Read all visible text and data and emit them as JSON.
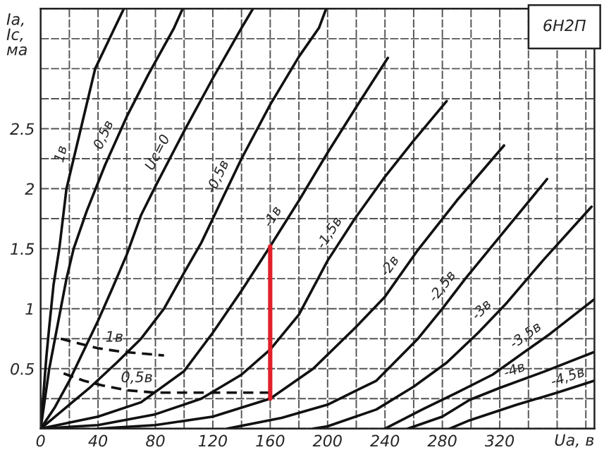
{
  "chart_data": {
    "type": "line",
    "title": "6Н2П",
    "xlabel": "Uа, в",
    "ylabel": "Iа,\nIс,\nма",
    "xlim": [
      0,
      386
    ],
    "ylim": [
      0,
      3.5
    ],
    "xticks": [
      0,
      {
        "value": 20,
        "label": null
      },
      40,
      {
        "value": 60,
        "label": null
      },
      80,
      {
        "value": 100,
        "label": null
      },
      120,
      {
        "value": 140,
        "label": null
      },
      160,
      {
        "value": 180,
        "label": null
      },
      200,
      {
        "value": 220,
        "label": null
      },
      240,
      {
        "value": 260,
        "label": null
      },
      280,
      {
        "value": 300,
        "label": null
      },
      320,
      {
        "value": 340,
        "label": null
      },
      {
        "value": 360,
        "label": null
      },
      {
        "value": 380,
        "label": null
      }
    ],
    "yticks": [
      {
        "value": 0,
        "label": null
      },
      {
        "value": 0.25,
        "label": null
      },
      0.5,
      {
        "value": 0.75,
        "label": null
      },
      1,
      {
        "value": 1.25,
        "label": null
      },
      1.5,
      {
        "value": 1.75,
        "label": null
      },
      2,
      {
        "value": 2.25,
        "label": null
      },
      2.5,
      {
        "value": 2.75,
        "label": null
      },
      {
        "value": 3,
        "label": null
      },
      {
        "value": 3.25,
        "label": null
      },
      {
        "value": 3.5,
        "label": null
      }
    ],
    "grid": true,
    "line_style": "solid",
    "marker": "none",
    "series": [
      {
        "name": "1в",
        "color": "#111111",
        "x": [
          0,
          2,
          4,
          6,
          9,
          13,
          16,
          18,
          28,
          38,
          50,
          58
        ],
        "values": [
          0,
          0.3,
          0.6,
          0.85,
          1.2,
          1.5,
          1.8,
          2,
          2.5,
          3,
          3.3,
          3.5
        ]
      },
      {
        "name": "0,5в",
        "color": "#111111",
        "x": [
          0,
          3,
          6,
          10,
          14,
          18,
          23,
          32,
          45,
          60,
          75,
          93,
          99
        ],
        "values": [
          0,
          0.25,
          0.5,
          0.75,
          1,
          1.25,
          1.5,
          1.81,
          2.2,
          2.6,
          2.95,
          3.34,
          3.5
        ]
      },
      {
        "name": "Uс=0",
        "color": "#111111",
        "x": [
          0,
          10,
          20,
          30,
          40,
          50,
          60,
          70,
          80,
          100,
          120,
          140,
          148
        ],
        "values": [
          0,
          0.18,
          0.4,
          0.65,
          0.9,
          1.17,
          1.45,
          1.78,
          2.02,
          2.48,
          2.92,
          3.34,
          3.5
        ]
      },
      {
        "name": "-0,5в",
        "color": "#111111",
        "x": [
          0,
          10,
          20,
          35,
          53,
          70,
          86,
          100,
          112,
          124,
          140,
          160,
          180,
          194,
          199
        ],
        "values": [
          0,
          0.1,
          0.2,
          0.35,
          0.55,
          0.75,
          1,
          1.3,
          1.55,
          1.85,
          2.25,
          2.7,
          3.1,
          3.34,
          3.5
        ]
      },
      {
        "name": "-1в",
        "color": "#111111",
        "x": [
          0,
          20,
          40,
          70,
          100,
          120,
          140,
          160,
          180,
          200,
          220,
          242
        ],
        "values": [
          0,
          0.05,
          0.1,
          0.22,
          0.48,
          0.8,
          1.15,
          1.52,
          1.9,
          2.3,
          2.68,
          3.09
        ]
      },
      {
        "name": "-1,5в",
        "color": "#111111",
        "x": [
          0,
          40,
          80,
          112,
          140,
          160,
          180,
          200,
          219,
          240,
          260,
          283
        ],
        "values": [
          0,
          0.03,
          0.12,
          0.25,
          0.45,
          0.66,
          0.95,
          1.4,
          1.75,
          2.1,
          2.4,
          2.73
        ]
      },
      {
        "name": "-2в",
        "color": "#111111",
        "x": [
          40,
          80,
          120,
          160,
          190,
          220,
          240,
          263,
          290,
          323
        ],
        "values": [
          0,
          0.03,
          0.1,
          0.25,
          0.5,
          0.85,
          1.1,
          1.49,
          1.9,
          2.36
        ]
      },
      {
        "name": "-2,5в",
        "color": "#111111",
        "x": [
          130,
          168,
          200,
          234,
          263,
          280,
          296,
          320,
          353
        ],
        "values": [
          0,
          0.09,
          0.2,
          0.4,
          0.75,
          1,
          1.25,
          1.6,
          2.08
        ]
      },
      {
        "name": "-3в",
        "color": "#111111",
        "x": [
          190,
          200,
          234,
          260,
          283,
          305,
          325,
          350,
          384
        ],
        "values": [
          0,
          0.02,
          0.16,
          0.35,
          0.55,
          0.8,
          1.05,
          1.4,
          1.85
        ]
      },
      {
        "name": "-3,5в",
        "color": "#111111",
        "x": [
          240,
          266,
          290,
          315,
          335,
          355,
          386
        ],
        "values": [
          0,
          0.16,
          0.3,
          0.45,
          0.62,
          0.79,
          1.08
        ]
      },
      {
        "name": "-4в",
        "color": "#111111",
        "x": [
          256,
          280,
          299,
          320,
          352,
          386
        ],
        "values": [
          0,
          0.1,
          0.24,
          0.34,
          0.48,
          0.64
        ]
      },
      {
        "name": "-4,5в",
        "color": "#111111",
        "x": [
          285,
          299,
          332,
          360,
          386
        ],
        "values": [
          0,
          0.07,
          0.2,
          0.3,
          0.4
        ]
      },
      {
        "name": "1в",
        "color": "#111111",
        "line_style": "dashed",
        "x": [
          14,
          20,
          40,
          57,
          86
        ],
        "values": [
          0.75,
          0.73,
          0.67,
          0.64,
          0.61
        ]
      },
      {
        "name": "0,5в",
        "color": "#111111",
        "line_style": "dashed",
        "x": [
          16,
          30,
          43,
          60,
          80,
          120,
          160
        ],
        "values": [
          0.46,
          0.4,
          0.36,
          0.32,
          0.3,
          0.3,
          0.3
        ]
      },
      {
        "color": "#e0202a",
        "x": [
          160,
          160
        ],
        "values": [
          1.52,
          0.25
        ]
      }
    ]
  }
}
